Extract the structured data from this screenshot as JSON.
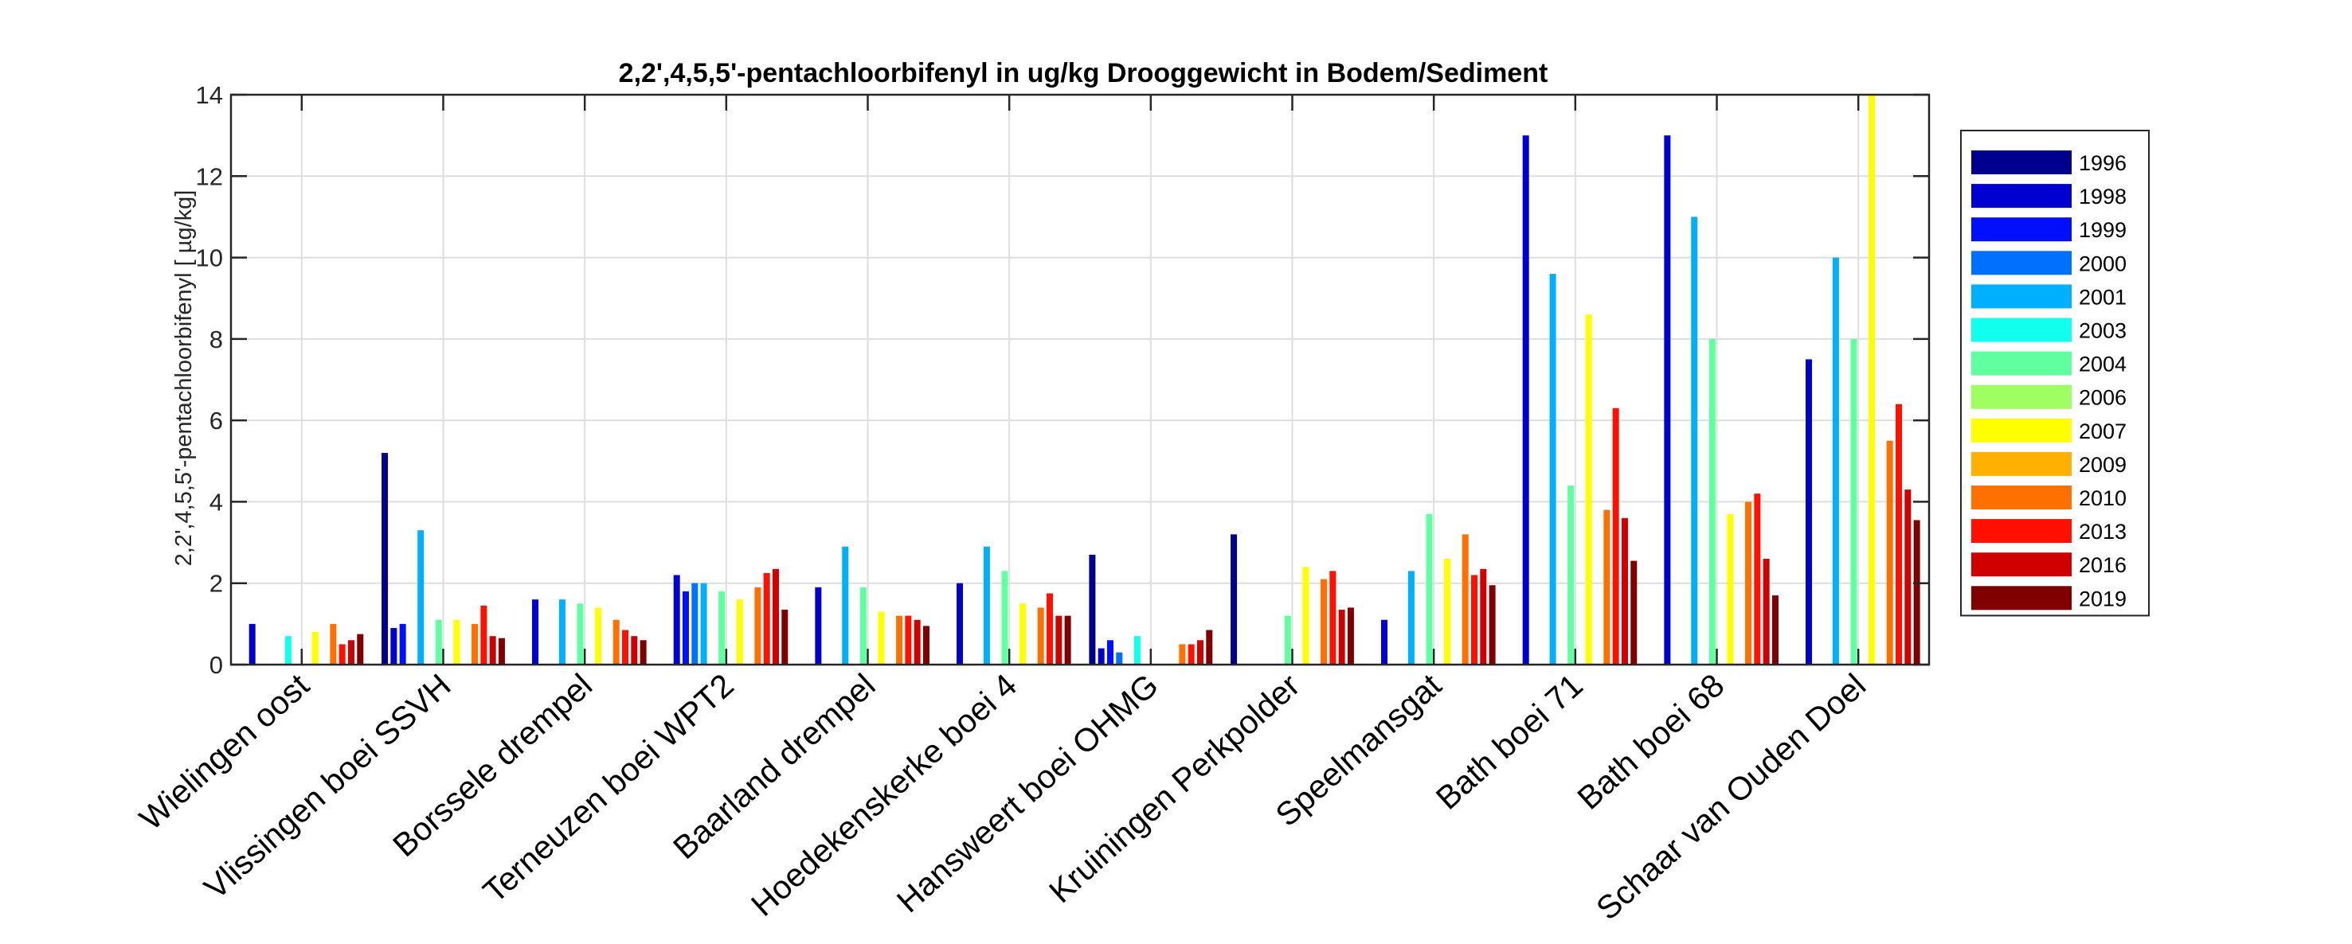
{
  "chart_data": {
    "type": "bar",
    "title": "2,2',4,5,5'-pentachloorbifenyl in ug/kg Drooggewicht in Bodem/Sediment",
    "ylabel": "2,2',4,5,5'-pentachloorbifenyl [ µg/kg]",
    "xlabel": "",
    "ylim": [
      0,
      14
    ],
    "yticks": [
      0,
      2,
      4,
      6,
      8,
      10,
      12,
      14
    ],
    "grid": true,
    "legend_position": "right",
    "categories": [
      "Wielingen oost",
      "Vlissingen boei SSVH",
      "Borssele drempel",
      "Terneuzen boei WPT2",
      "Baarland drempel",
      "Hoedekenskerke boei 4",
      "Hansweert boei OHMG",
      "Kruiningen Perkpolder",
      "Speelmansgat",
      "Bath boei 71",
      "Bath boei 68",
      "Schaar van Ouden Doel"
    ],
    "series": [
      {
        "name": "1996",
        "color": "#00008f",
        "values": [
          null,
          5.2,
          null,
          null,
          null,
          null,
          2.7,
          3.2,
          null,
          null,
          null,
          null
        ]
      },
      {
        "name": "1998",
        "color": "#0000d0",
        "values": [
          1.0,
          0.9,
          1.6,
          2.2,
          1.9,
          2.0,
          0.4,
          null,
          1.1,
          13.0,
          13.0,
          7.5
        ]
      },
      {
        "name": "1999",
        "color": "#0010ff",
        "values": [
          null,
          1.0,
          null,
          1.8,
          null,
          null,
          0.6,
          null,
          null,
          null,
          null,
          null
        ]
      },
      {
        "name": "2000",
        "color": "#0070ff",
        "values": [
          null,
          null,
          null,
          2.0,
          null,
          null,
          0.3,
          null,
          null,
          null,
          null,
          null
        ]
      },
      {
        "name": "2001",
        "color": "#00b0ff",
        "values": [
          null,
          3.3,
          1.6,
          2.0,
          2.9,
          2.9,
          null,
          null,
          2.3,
          9.6,
          11.0,
          10.0
        ]
      },
      {
        "name": "2003",
        "color": "#10ffef",
        "values": [
          0.7,
          null,
          null,
          null,
          null,
          null,
          0.7,
          null,
          null,
          null,
          null,
          null
        ]
      },
      {
        "name": "2004",
        "color": "#60ff9f",
        "values": [
          null,
          1.1,
          1.5,
          1.8,
          1.9,
          2.3,
          null,
          1.2,
          3.7,
          4.4,
          8.0,
          8.0
        ]
      },
      {
        "name": "2006",
        "color": "#9fff60",
        "values": [
          null,
          null,
          null,
          null,
          null,
          null,
          null,
          null,
          null,
          null,
          null,
          null
        ]
      },
      {
        "name": "2007",
        "color": "#ffff00",
        "values": [
          0.8,
          1.1,
          1.4,
          1.6,
          1.3,
          1.5,
          null,
          2.4,
          2.6,
          8.6,
          3.7,
          14.0
        ]
      },
      {
        "name": "2009",
        "color": "#ffb000",
        "values": [
          null,
          null,
          null,
          null,
          null,
          null,
          null,
          null,
          null,
          null,
          null,
          null
        ]
      },
      {
        "name": "2010",
        "color": "#ff7000",
        "values": [
          1.0,
          1.0,
          1.1,
          1.9,
          1.2,
          1.4,
          0.5,
          2.1,
          3.2,
          3.8,
          4.0,
          5.5
        ]
      },
      {
        "name": "2013",
        "color": "#ff1000",
        "values": [
          0.5,
          1.45,
          0.85,
          2.25,
          1.2,
          1.75,
          0.5,
          2.3,
          2.2,
          6.3,
          4.2,
          6.4
        ]
      },
      {
        "name": "2016",
        "color": "#d00000",
        "values": [
          0.6,
          0.7,
          0.7,
          2.35,
          1.1,
          1.2,
          0.6,
          1.35,
          2.35,
          3.6,
          2.6,
          4.3
        ]
      },
      {
        "name": "2019",
        "color": "#800000",
        "values": [
          0.75,
          0.65,
          0.6,
          1.35,
          0.95,
          1.2,
          0.85,
          1.4,
          1.95,
          2.55,
          1.7,
          3.55
        ]
      }
    ]
  }
}
